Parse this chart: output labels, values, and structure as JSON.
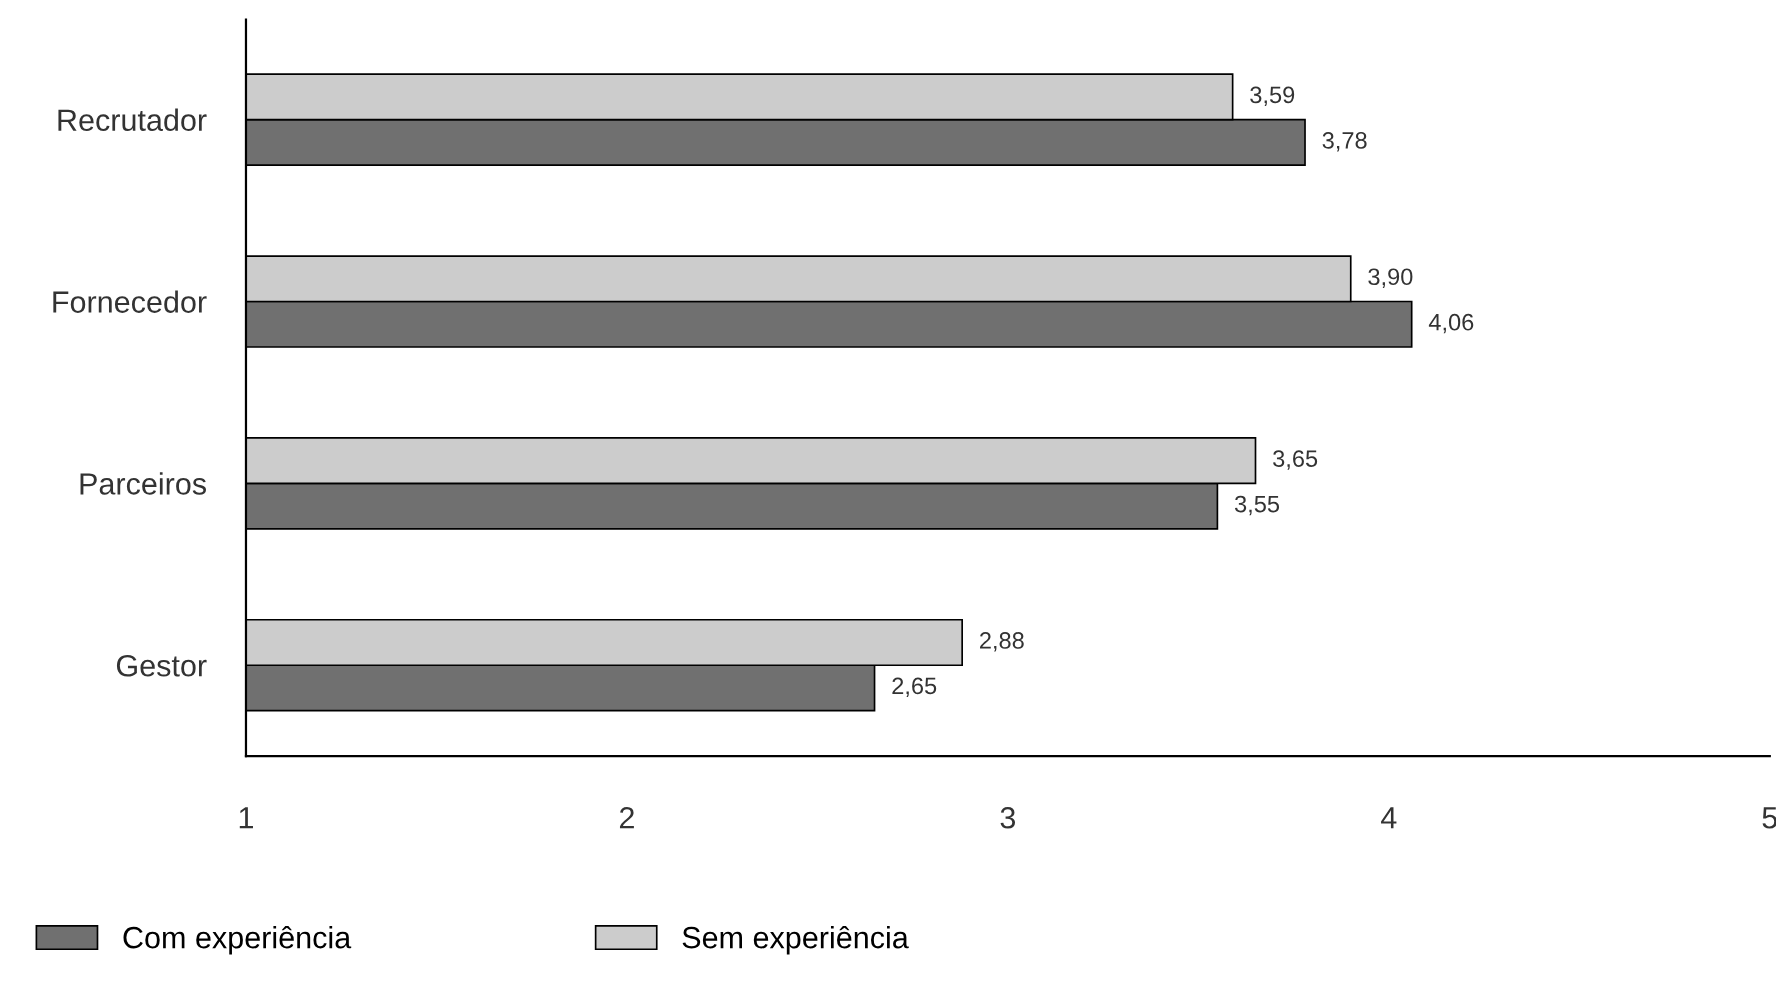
{
  "chart_data": {
    "type": "bar",
    "orientation": "horizontal",
    "categories": [
      "Recrutador",
      "Fornecedor",
      "Parceiros",
      "Gestor"
    ],
    "series": [
      {
        "name": "Com experiência",
        "color": "#707070",
        "values": [
          3.78,
          4.06,
          3.55,
          2.65
        ],
        "value_labels": [
          "3,78",
          "4,06",
          "3,55",
          "2,65"
        ]
      },
      {
        "name": "Sem experiência",
        "color": "#cccccc",
        "values": [
          3.59,
          3.9,
          3.65,
          2.88
        ],
        "value_labels": [
          "3,59",
          "3,90",
          "3,65",
          "2,88"
        ]
      }
    ],
    "xlim": [
      1,
      5
    ],
    "xticks": [
      1,
      2,
      3,
      4,
      5
    ],
    "grid": false,
    "legend": "bottom"
  }
}
